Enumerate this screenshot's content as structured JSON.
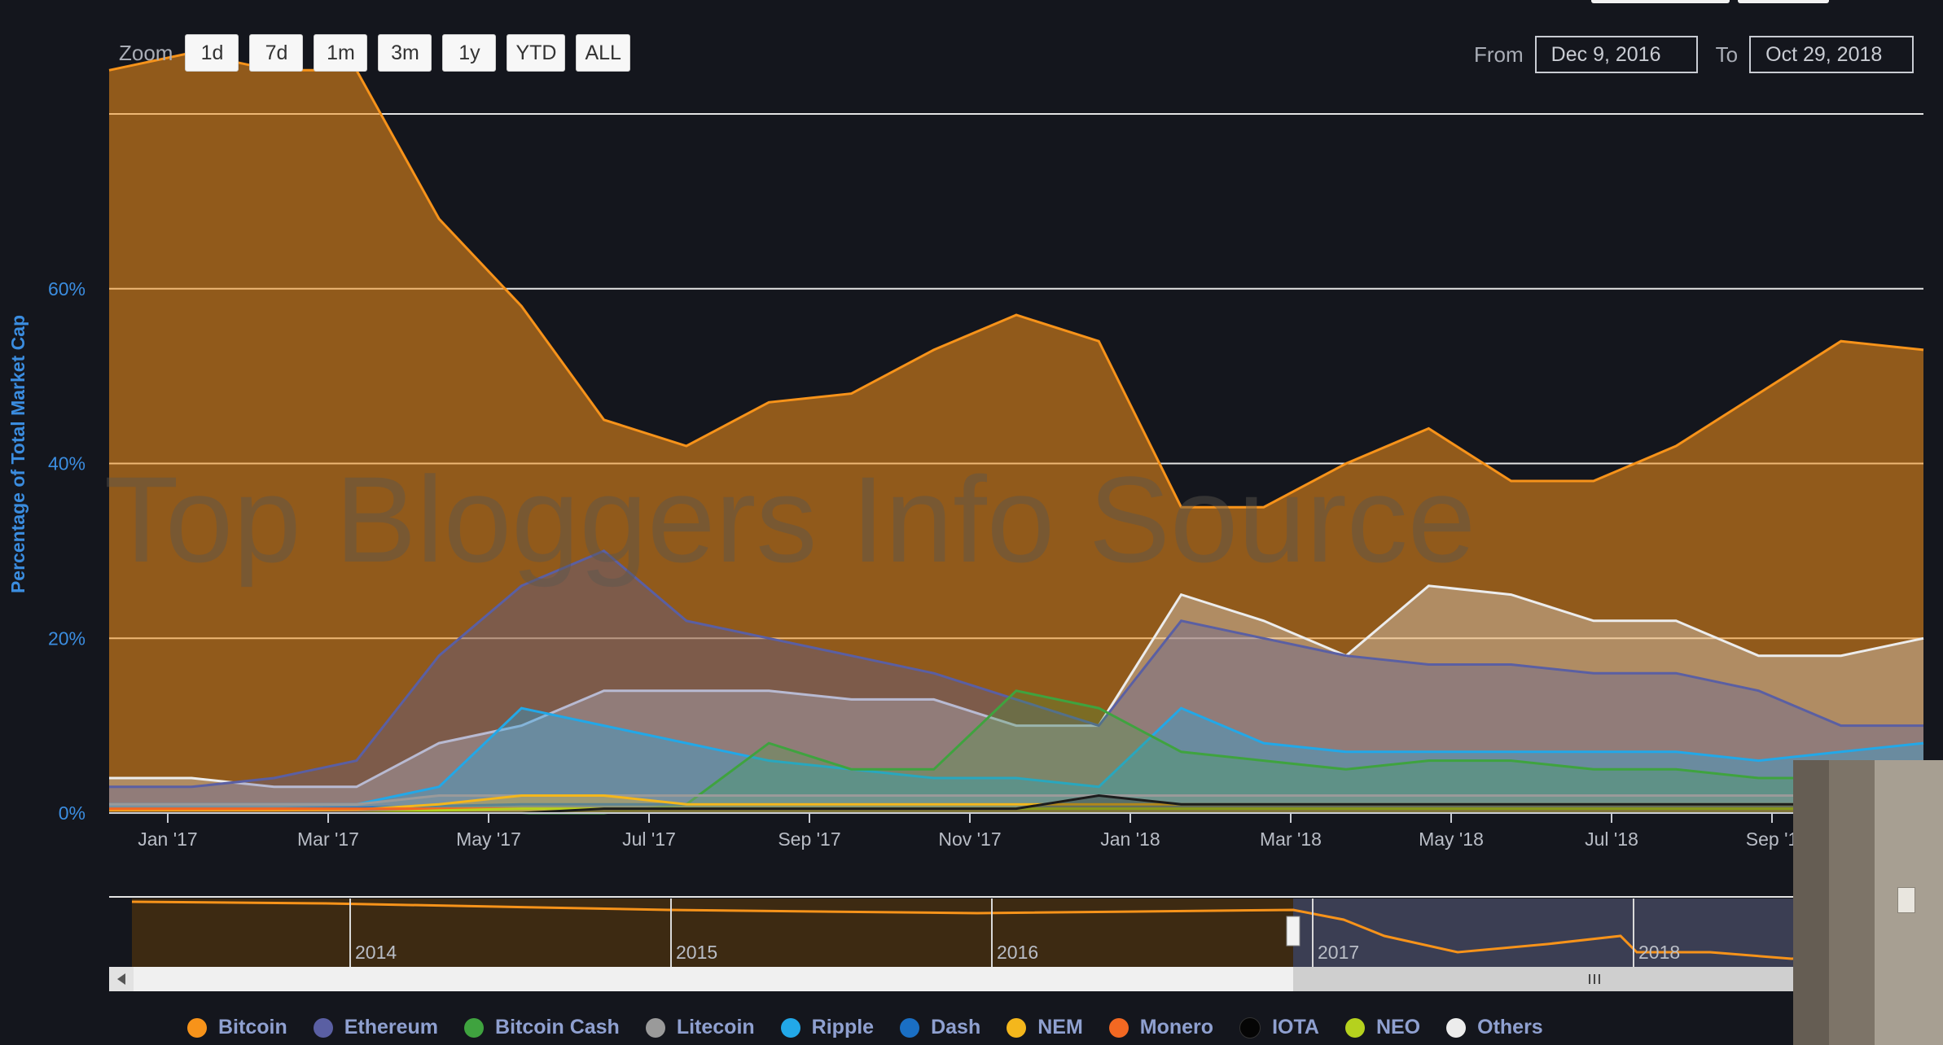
{
  "zoom": {
    "label": "Zoom",
    "buttons": [
      "1d",
      "7d",
      "1m",
      "3m",
      "1y",
      "YTD",
      "ALL"
    ]
  },
  "range": {
    "from_label": "From",
    "from_value": "Dec 9, 2016",
    "to_label": "To",
    "to_value": "Oct 29, 2018"
  },
  "watermark": "Top Bloggers Info Source",
  "colors": {
    "Bitcoin": "#f7931a",
    "Ethereum": "#5a5fa3",
    "Bitcoin Cash": "#3fa33f",
    "Litecoin": "#9a9a9a",
    "Ripple": "#22a8e8",
    "Dash": "#1a6fc4",
    "NEM": "#f4b71c",
    "Monero": "#f26822",
    "IOTA": "#1c1c1c",
    "NEO": "#b5d11e",
    "Others": "#ececec"
  },
  "navigator": {
    "labels": [
      "2014",
      "2015",
      "2016",
      "2017",
      "2018"
    ]
  },
  "chart_data": {
    "type": "area",
    "ylabel": "Percentage of Total Market Cap",
    "ylim": [
      0,
      80
    ],
    "yticks": [
      "0%",
      "20%",
      "40%",
      "60%"
    ],
    "xticks": [
      "Jan '17",
      "Mar '17",
      "May '17",
      "Jul '17",
      "Sep '17",
      "Nov '17",
      "Jan '18",
      "Mar '18",
      "May '18",
      "Jul '18",
      "Sep '1"
    ],
    "x": [
      "Dec '16",
      "Jan '17",
      "Feb '17",
      "Mar '17",
      "Apr '17",
      "May '17",
      "Jun '17",
      "Jul '17",
      "Aug '17",
      "Sep '17",
      "Oct '17",
      "Nov '17",
      "Dec '17",
      "Jan '18",
      "Feb '18",
      "Mar '18",
      "Apr '18",
      "May '18",
      "Jun '18",
      "Jul '18",
      "Aug '18",
      "Sep '18",
      "Oct '18"
    ],
    "grid": true,
    "legend_position": "bottom",
    "series": [
      {
        "name": "Bitcoin",
        "values": [
          85,
          87,
          85,
          85,
          68,
          58,
          45,
          42,
          47,
          48,
          53,
          57,
          54,
          35,
          35,
          40,
          44,
          38,
          38,
          42,
          48,
          54,
          53
        ]
      },
      {
        "name": "Ethereum",
        "values": [
          3,
          3,
          4,
          6,
          18,
          26,
          30,
          22,
          20,
          18,
          16,
          13,
          10,
          22,
          20,
          18,
          17,
          17,
          16,
          16,
          14,
          10,
          10
        ]
      },
      {
        "name": "Bitcoin Cash",
        "values": [
          0,
          0,
          0,
          0,
          0,
          0,
          0,
          1,
          8,
          5,
          5,
          14,
          12,
          7,
          6,
          5,
          6,
          6,
          5,
          5,
          4,
          4,
          4
        ]
      },
      {
        "name": "Litecoin",
        "values": [
          1,
          1,
          1,
          1,
          2,
          2,
          2,
          2,
          2,
          2,
          2,
          2,
          2,
          2,
          2,
          2,
          2,
          2,
          2,
          2,
          2,
          2,
          2
        ]
      },
      {
        "name": "Ripple",
        "values": [
          1,
          1,
          1,
          1,
          3,
          12,
          10,
          8,
          6,
          5,
          4,
          4,
          3,
          12,
          8,
          7,
          7,
          7,
          7,
          7,
          6,
          7,
          8
        ]
      },
      {
        "name": "Dash",
        "values": [
          0.5,
          0.5,
          0.5,
          0.6,
          0.8,
          1,
          1,
          1,
          1,
          1,
          1,
          1,
          1,
          1,
          1,
          1,
          1,
          1,
          1,
          1,
          1,
          1,
          1
        ]
      },
      {
        "name": "NEM",
        "values": [
          0.3,
          0.3,
          0.3,
          0.4,
          1,
          2,
          2,
          1,
          1,
          1,
          1,
          1,
          1,
          1,
          1,
          1,
          1,
          1,
          1,
          1,
          1,
          1,
          1
        ]
      },
      {
        "name": "Monero",
        "values": [
          0.5,
          0.5,
          0.5,
          0.5,
          0.5,
          0.5,
          0.5,
          0.5,
          0.5,
          0.5,
          0.5,
          0.5,
          0.5,
          0.5,
          0.5,
          0.5,
          0.5,
          0.5,
          0.5,
          0.5,
          0.5,
          0.5,
          0.5
        ]
      },
      {
        "name": "IOTA",
        "values": [
          0,
          0,
          0,
          0,
          0,
          0,
          0.5,
          0.5,
          0.5,
          0.5,
          0.5,
          0.5,
          2,
          1,
          1,
          1,
          1,
          1,
          1,
          1,
          1,
          1,
          1
        ]
      },
      {
        "name": "NEO",
        "values": [
          0,
          0,
          0,
          0,
          0.3,
          0.5,
          0.5,
          0.5,
          0.5,
          0.5,
          0.5,
          0.5,
          0.5,
          0.5,
          0.5,
          0.5,
          0.5,
          0.5,
          0.5,
          0.5,
          0.5,
          0.5,
          0.5
        ]
      },
      {
        "name": "Others",
        "values": [
          4,
          4,
          3,
          3,
          8,
          10,
          14,
          14,
          14,
          13,
          13,
          10,
          10,
          25,
          22,
          18,
          26,
          25,
          22,
          22,
          18,
          18,
          20
        ]
      }
    ]
  }
}
